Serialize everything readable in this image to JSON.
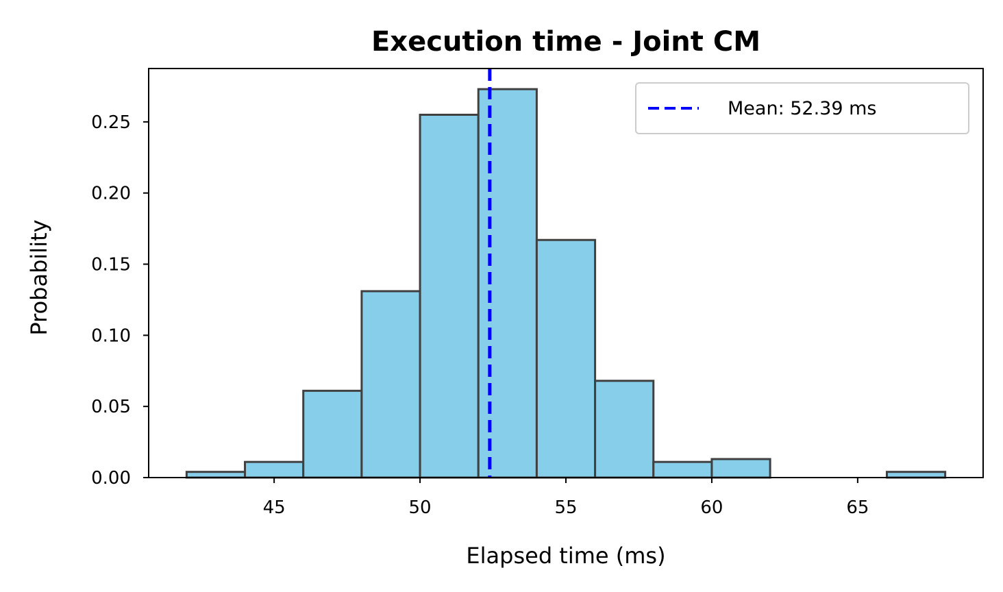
{
  "chart_data": {
    "type": "bar",
    "subtype": "histogram",
    "title": "Execution time - Joint CM",
    "xlabel": "Elapsed time (ms)",
    "ylabel": "Probability",
    "xlim": [
      40.7,
      69.3
    ],
    "ylim": [
      0,
      0.2875
    ],
    "xticks": [
      45,
      50,
      55,
      60,
      65
    ],
    "xtick_labels": [
      "45",
      "50",
      "55",
      "60",
      "65"
    ],
    "yticks": [
      0.0,
      0.05,
      0.1,
      0.15,
      0.2,
      0.25
    ],
    "ytick_labels": [
      "0.00",
      "0.05",
      "0.10",
      "0.15",
      "0.20",
      "0.25"
    ],
    "bins": [
      {
        "x0": 42,
        "x1": 44,
        "value": 0.004
      },
      {
        "x0": 44,
        "x1": 46,
        "value": 0.011
      },
      {
        "x0": 46,
        "x1": 48,
        "value": 0.061
      },
      {
        "x0": 48,
        "x1": 50,
        "value": 0.131
      },
      {
        "x0": 50,
        "x1": 52,
        "value": 0.255
      },
      {
        "x0": 52,
        "x1": 54,
        "value": 0.273
      },
      {
        "x0": 54,
        "x1": 56,
        "value": 0.167
      },
      {
        "x0": 56,
        "x1": 58,
        "value": 0.068
      },
      {
        "x0": 58,
        "x1": 60,
        "value": 0.011
      },
      {
        "x0": 60,
        "x1": 62,
        "value": 0.013
      },
      {
        "x0": 62,
        "x1": 64,
        "value": 0.0
      },
      {
        "x0": 64,
        "x1": 66,
        "value": 0.0
      },
      {
        "x0": 66,
        "x1": 68,
        "value": 0.004
      }
    ],
    "mean_line": {
      "value": 52.39,
      "label": "Mean: 52.39 ms",
      "color": "#0000ff",
      "style": "dashed"
    },
    "bar_color": "#87ceeb",
    "bar_edge_color": "#404040",
    "legend_position": "top-right",
    "grid": false
  }
}
